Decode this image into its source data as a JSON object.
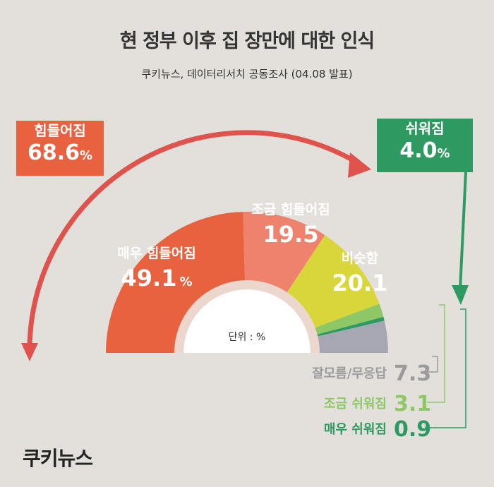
{
  "header": {
    "title": "현 정부 이후 집 장만에 대한 인식",
    "subtitle": "쿠키뉴스, 데이터리서치 공동조사 (04.08 발표)"
  },
  "callouts": {
    "harder": {
      "label": "힘들어짐",
      "value": "68.6",
      "unit": "%"
    },
    "easier": {
      "label": "쉬워짐",
      "value": "4.0",
      "unit": "%"
    }
  },
  "unit_note": "단위 : %",
  "logo": "쿠키뉴스",
  "colors": {
    "much_harder": "#e8623f",
    "slightly_harder": "#ee826c",
    "same": "#d8d63b",
    "slightly_easier": "#8ec766",
    "much_easier": "#2e9a62",
    "unknown": "#a7a7b4",
    "harder_callout": "#e8623f",
    "easier_callout": "#2e9a62"
  },
  "chart_data": {
    "type": "pie",
    "title": "현 정부 이후 집 장만에 대한 인식",
    "unit": "%",
    "categories": [
      "매우 힘들어짐",
      "조금 힘들어짐",
      "비슷함",
      "조금 쉬워짐",
      "매우 쉬워짐",
      "잘모름/무응답"
    ],
    "values": [
      49.1,
      19.5,
      20.1,
      3.1,
      0.9,
      7.3
    ],
    "value_labels": [
      "49.1",
      "19.5",
      "20.1",
      "3.1",
      "0.9",
      "7.3"
    ],
    "groups": [
      {
        "name": "힘들어짐",
        "value": 68.6
      },
      {
        "name": "쉬워짐",
        "value": 4.0
      }
    ],
    "shape": "semicircle-donut"
  }
}
